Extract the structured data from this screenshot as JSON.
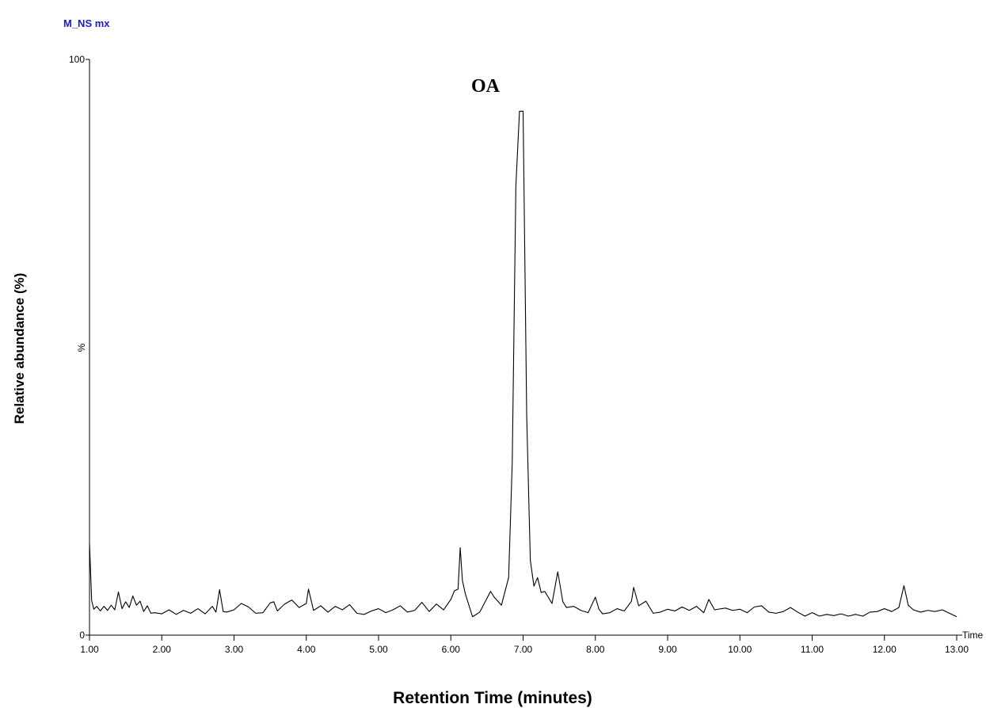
{
  "chart_data": {
    "type": "line",
    "trace_label": "M_NS mx",
    "annotation": "OA",
    "y_unit_label": "%",
    "x_unit_label": "Time",
    "xlabel": "Retention Time (minutes)",
    "ylabel": "Relative abundance (%)",
    "xlim": [
      1,
      13
    ],
    "ylim": [
      0,
      100
    ],
    "xticks": [
      {
        "value": 1,
        "label": "1.00"
      },
      {
        "value": 2,
        "label": "2.00"
      },
      {
        "value": 3,
        "label": "3.00"
      },
      {
        "value": 4,
        "label": "4.00"
      },
      {
        "value": 5,
        "label": "5.00"
      },
      {
        "value": 6,
        "label": "6.00"
      },
      {
        "value": 7,
        "label": "7.00"
      },
      {
        "value": 8,
        "label": "8.00"
      },
      {
        "value": 9,
        "label": "9.00"
      },
      {
        "value": 10,
        "label": "10.00"
      },
      {
        "value": 11,
        "label": "11.00"
      },
      {
        "value": 12,
        "label": "12.00"
      },
      {
        "value": 13,
        "label": "13.00"
      }
    ],
    "yticks": [
      0,
      100
    ],
    "grid": false,
    "series": [
      {
        "color": "#000000",
        "x": [
          1.0,
          1.03,
          1.06,
          1.1,
          1.15,
          1.2,
          1.25,
          1.3,
          1.35,
          1.4,
          1.45,
          1.5,
          1.55,
          1.6,
          1.65,
          1.7,
          1.75,
          1.8,
          1.85,
          1.9,
          2.0,
          2.1,
          2.2,
          2.3,
          2.4,
          2.5,
          2.6,
          2.7,
          2.75,
          2.8,
          2.85,
          2.9,
          3.0,
          3.1,
          3.2,
          3.3,
          3.4,
          3.5,
          3.55,
          3.6,
          3.7,
          3.8,
          3.9,
          4.0,
          4.03,
          4.1,
          4.2,
          4.3,
          4.4,
          4.5,
          4.6,
          4.7,
          4.8,
          4.9,
          5.0,
          5.1,
          5.2,
          5.3,
          5.4,
          5.5,
          5.6,
          5.7,
          5.8,
          5.9,
          6.0,
          6.05,
          6.1,
          6.13,
          6.16,
          6.2,
          6.3,
          6.4,
          6.5,
          6.55,
          6.6,
          6.7,
          6.8,
          6.85,
          6.9,
          6.95,
          7.0,
          7.05,
          7.1,
          7.15,
          7.2,
          7.25,
          7.3,
          7.4,
          7.48,
          7.55,
          7.6,
          7.7,
          7.8,
          7.9,
          8.0,
          8.05,
          8.1,
          8.2,
          8.3,
          8.4,
          8.5,
          8.53,
          8.6,
          8.7,
          8.8,
          8.9,
          9.0,
          9.1,
          9.2,
          9.3,
          9.4,
          9.5,
          9.57,
          9.65,
          9.8,
          9.9,
          10.0,
          10.1,
          10.2,
          10.3,
          10.4,
          10.5,
          10.6,
          10.7,
          10.8,
          10.9,
          11.0,
          11.1,
          11.2,
          11.3,
          11.4,
          11.5,
          11.6,
          11.7,
          11.8,
          11.9,
          12.0,
          12.1,
          12.2,
          12.27,
          12.33,
          12.4,
          12.5,
          12.6,
          12.7,
          12.8,
          12.9,
          13.0
        ],
        "values": [
          16,
          6,
          4.5,
          5,
          4.2,
          5,
          4.3,
          5.2,
          4.4,
          7.5,
          4.6,
          5.8,
          4.8,
          6.8,
          5.2,
          5.9,
          4.1,
          5.1,
          3.8,
          3.9,
          3.7,
          4.4,
          3.6,
          4.3,
          3.8,
          4.6,
          3.7,
          5,
          4,
          7.9,
          4.1,
          4.0,
          4.4,
          5.5,
          4.9,
          3.8,
          3.9,
          5.6,
          5.8,
          4.2,
          5.4,
          6.1,
          4.8,
          5.5,
          8.0,
          4.3,
          5.1,
          4.0,
          5.0,
          4.4,
          5.3,
          3.8,
          3.6,
          4.2,
          4.6,
          3.9,
          4.4,
          5.1,
          4.0,
          4.3,
          5.7,
          4.1,
          5.4,
          4.4,
          6.2,
          7.7,
          8.0,
          15.2,
          9.5,
          7.2,
          3.2,
          4.0,
          6.4,
          7.6,
          6.6,
          5.2,
          10,
          30,
          78,
          91,
          91,
          38,
          13,
          8.5,
          10,
          7.4,
          7.6,
          5.5,
          11,
          5.8,
          4.8,
          5.0,
          4.3,
          3.9,
          6.6,
          4.5,
          3.7,
          3.9,
          4.6,
          4.2,
          5.9,
          8.3,
          5.1,
          5.9,
          3.8,
          4.0,
          4.5,
          4.2,
          4.9,
          4.3,
          5.0,
          3.9,
          6.2,
          4.4,
          4.7,
          4.3,
          4.5,
          3.9,
          4.9,
          5.1,
          4.0,
          3.8,
          4.1,
          4.8,
          4.0,
          3.3,
          3.9,
          3.3,
          3.6,
          3.4,
          3.7,
          3.3,
          3.6,
          3.3,
          4.0,
          4.1,
          4.6,
          4.1,
          4.8,
          8.6,
          5.2,
          4.4,
          4.0,
          4.3,
          4.1,
          4.4,
          3.8,
          3.2
        ]
      }
    ]
  }
}
